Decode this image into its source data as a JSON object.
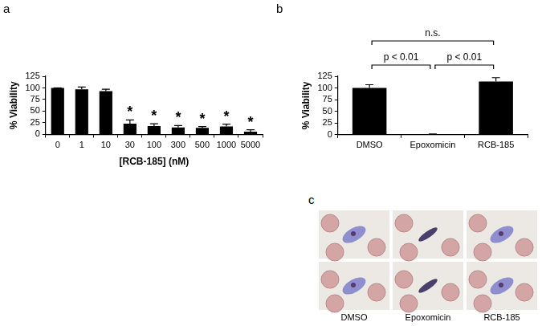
{
  "chart_data": [
    {
      "type": "bar",
      "panel_label": "a",
      "categories": [
        "0",
        "1",
        "10",
        "30",
        "100",
        "300",
        "500",
        "1000",
        "5000"
      ],
      "values": [
        100,
        97,
        93,
        23,
        18,
        15,
        14,
        17,
        6
      ],
      "errors": [
        0,
        5,
        4,
        8,
        5,
        4,
        3,
        5,
        4
      ],
      "color": "#000000",
      "xlabel": "[RCB-185] (nM)",
      "ylabel": "% Viability",
      "ylim": [
        0,
        125
      ],
      "yticks": [
        0,
        25,
        50,
        75,
        100,
        125
      ],
      "grid": false,
      "annotations": [
        {
          "text": "*",
          "category": "30"
        },
        {
          "text": "*",
          "category": "100"
        },
        {
          "text": "*",
          "category": "300"
        },
        {
          "text": "*",
          "category": "500"
        },
        {
          "text": "*",
          "category": "1000"
        },
        {
          "text": "*",
          "category": "5000"
        }
      ]
    },
    {
      "type": "bar",
      "panel_label": "b",
      "categories": [
        "DMSO",
        "Epoxomicin",
        "RCB-185"
      ],
      "values": [
        100,
        1,
        114
      ],
      "errors": [
        7,
        0.5,
        8
      ],
      "color": "#000000",
      "ylabel": "% Viability",
      "ylim": [
        0,
        125
      ],
      "yticks": [
        0,
        25,
        50,
        75,
        100,
        125
      ],
      "grid": false,
      "annotations": [
        {
          "text": "n.s.",
          "from": "DMSO",
          "to": "RCB-185"
        },
        {
          "text": "p < 0.01",
          "from": "DMSO",
          "to": "Epoxomicin"
        },
        {
          "text": "p < 0.01",
          "from": "Epoxomicin",
          "to": "RCB-185"
        }
      ]
    }
  ],
  "panel_c": {
    "label": "c",
    "captions": [
      "DMSO",
      "Epoxomicin",
      "RCB-185"
    ]
  }
}
